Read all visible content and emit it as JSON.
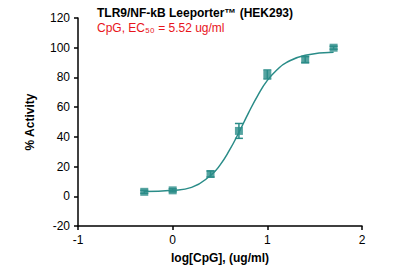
{
  "chart_data": {
    "type": "scatter",
    "title": "TLR9/NF-kB Leeporter™ (HEK293)",
    "subtitle": "CpG, EC₅₀ = 5.52 ug/ml",
    "x_label": "log[CpG], (ug/ml)",
    "y_label": "% Activity",
    "x": [
      -0.3,
      0,
      0.4,
      0.7,
      1.0,
      1.4,
      1.7
    ],
    "values": [
      3,
      4,
      15,
      44,
      82,
      92,
      100
    ],
    "errors": [
      1,
      1,
      2,
      5,
      3,
      2,
      1
    ],
    "fit": {
      "x": [
        -0.3,
        0,
        0.2,
        0.4,
        0.5,
        0.6,
        0.7,
        0.8,
        0.9,
        1.0,
        1.1,
        1.2,
        1.4,
        1.7
      ],
      "values": [
        3.2,
        4,
        6,
        14,
        21,
        31,
        43,
        56,
        68,
        78,
        85,
        90,
        95,
        97
      ]
    },
    "color": "#2a8c88",
    "marker": "square",
    "line_style": "solid",
    "xlim": [
      -1,
      2
    ],
    "xticks": [
      -1,
      0,
      1,
      2
    ],
    "ylim": [
      -20,
      120
    ],
    "yticks": [
      -20,
      0,
      20,
      40,
      60,
      80,
      100,
      120
    ],
    "grid": false
  }
}
